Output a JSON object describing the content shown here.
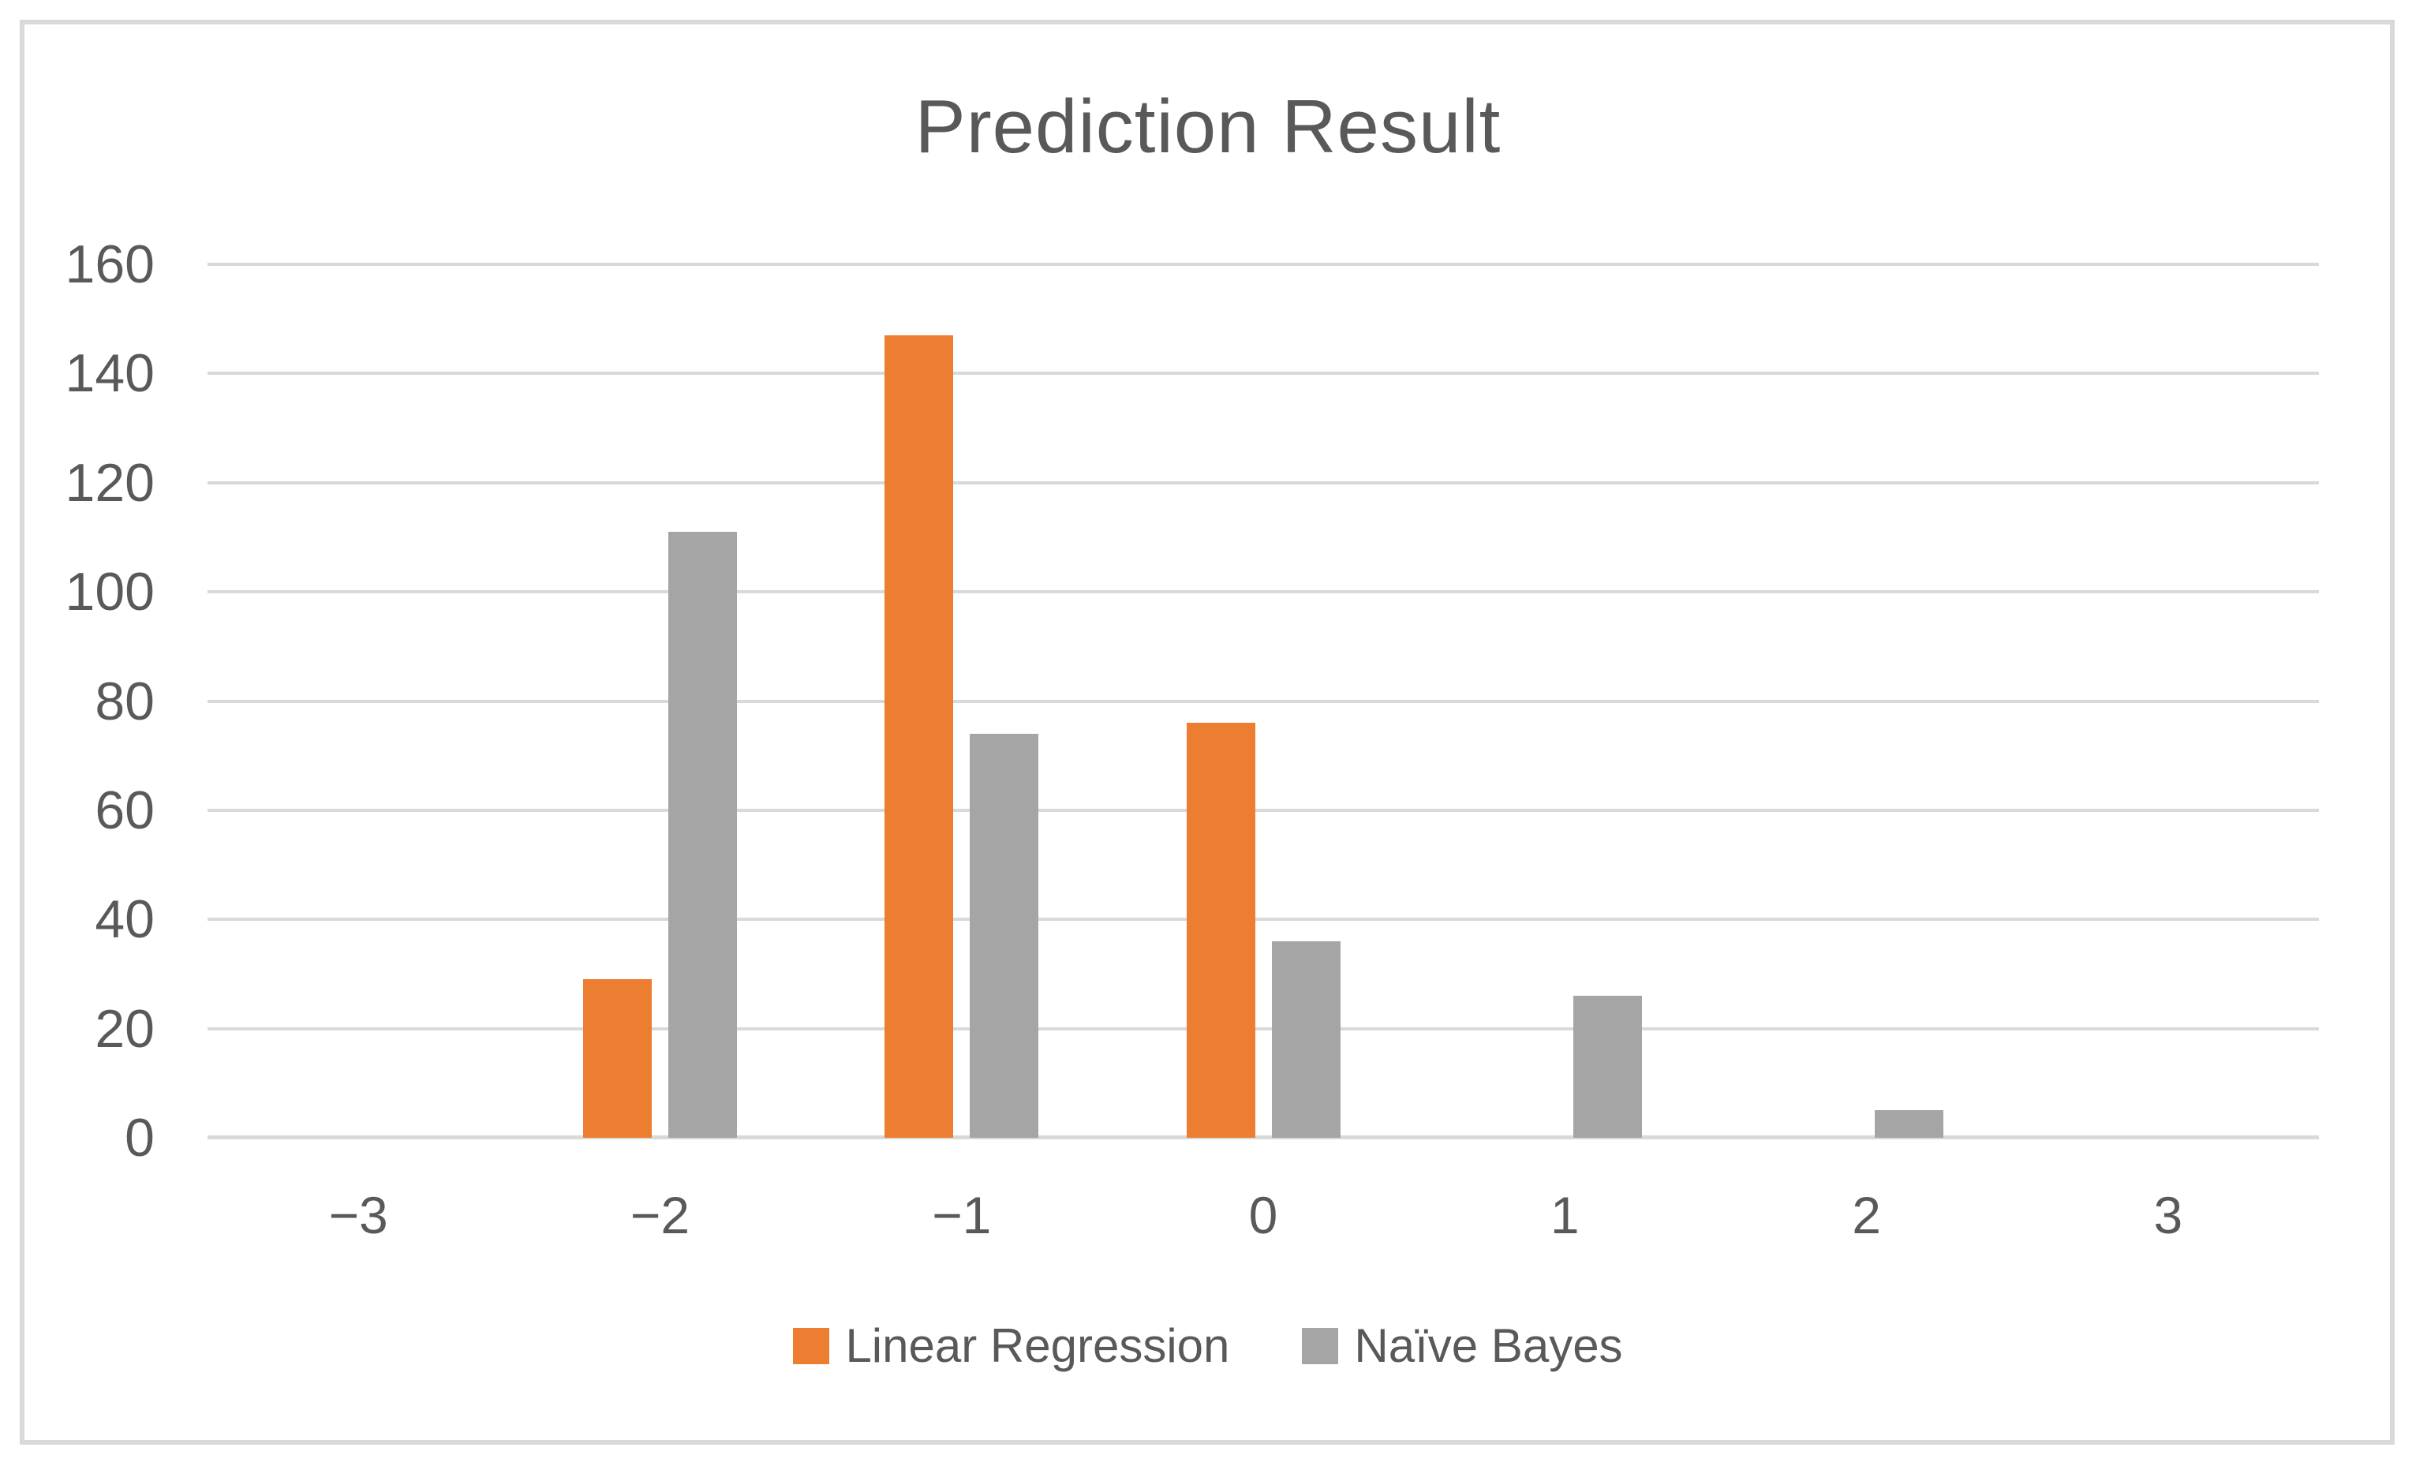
{
  "chart_data": {
    "type": "bar",
    "title": "Prediction Result",
    "categories": [
      "−3",
      "−2",
      "−1",
      "0",
      "1",
      "2",
      "3"
    ],
    "series": [
      {
        "name": "Linear Regression",
        "color": "#ED7D31",
        "values": [
          0,
          29,
          147,
          76,
          0,
          0,
          0
        ]
      },
      {
        "name": "Naïve Bayes",
        "color": "#A5A5A5",
        "values": [
          0,
          111,
          74,
          36,
          26,
          5,
          0
        ]
      }
    ],
    "xlabel": "",
    "ylabel": "",
    "ylim": [
      0,
      160
    ],
    "yticks": [
      0,
      20,
      40,
      60,
      80,
      100,
      120,
      140,
      160
    ],
    "grid": true,
    "legend_position": "bottom"
  },
  "colors": {
    "background": "#FFFFFF",
    "border": "#D9D9D9",
    "gridline": "#D9D9D9",
    "axis_line": "#D9D9D9",
    "text": "#595959",
    "series_linear_regression": "#ED7D31",
    "series_naive_bayes": "#A5A5A5"
  }
}
